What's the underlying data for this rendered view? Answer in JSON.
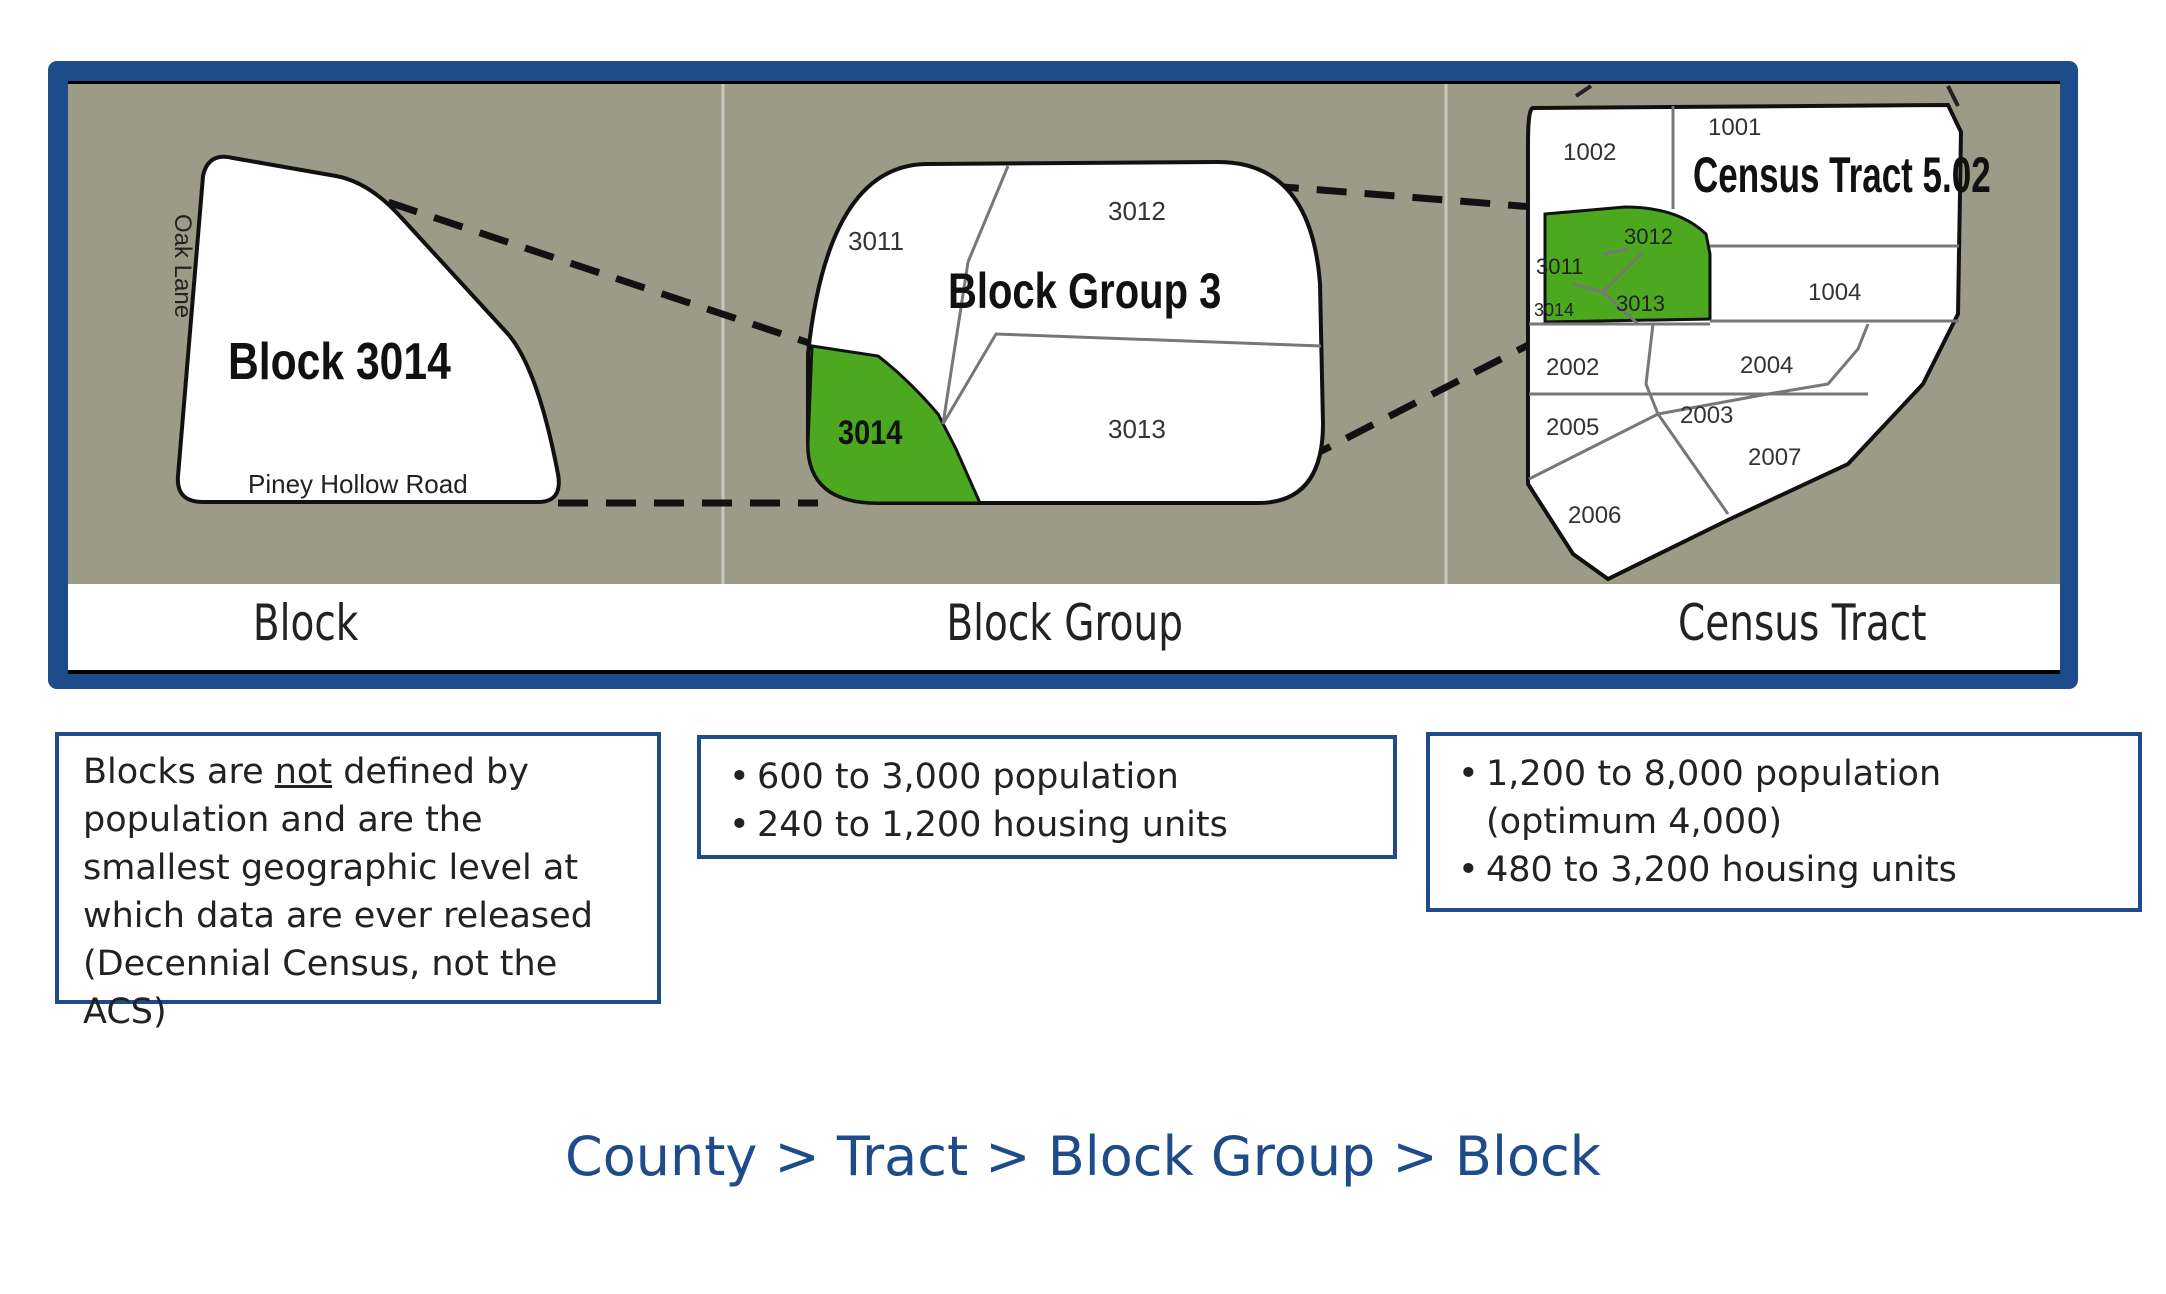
{
  "diagram": {
    "block_panel": {
      "title": "Block 3014",
      "street_left": "Oak Lane",
      "street_bottom": "Piney Hollow Road"
    },
    "block_group_panel": {
      "title": "Block Group 3",
      "blocks": [
        "3011",
        "3012",
        "3013",
        "3014"
      ],
      "highlight": "3014"
    },
    "tract_panel": {
      "title": "Census Tract 5.02",
      "blocks": [
        "1001",
        "1002",
        "1004",
        "2002",
        "2003",
        "2004",
        "2005",
        "2006",
        "2007"
      ],
      "highlight_group": [
        "3011",
        "3012",
        "3013",
        "3014"
      ]
    },
    "colors": {
      "frame": "#1e4b8a",
      "panel": "#9b9b88",
      "highlight": "#4ca81e"
    },
    "captions": [
      "Block",
      "Block Group",
      "Census Tract"
    ]
  },
  "notes": {
    "block": {
      "pre": "Blocks are ",
      "emphasis": "not",
      "post": " defined by population and are the smallest geographic level at which data are ever released  (Decennial Census, not the ACS)"
    },
    "block_group": [
      "600 to 3,000 population",
      "240 to 1,200 housing units"
    ],
    "tract": [
      "1,200 to 8,000 population (optimum 4,000)",
      "480 to 3,200 housing units"
    ]
  },
  "hierarchy": "County > Tract > Block Group > Block"
}
